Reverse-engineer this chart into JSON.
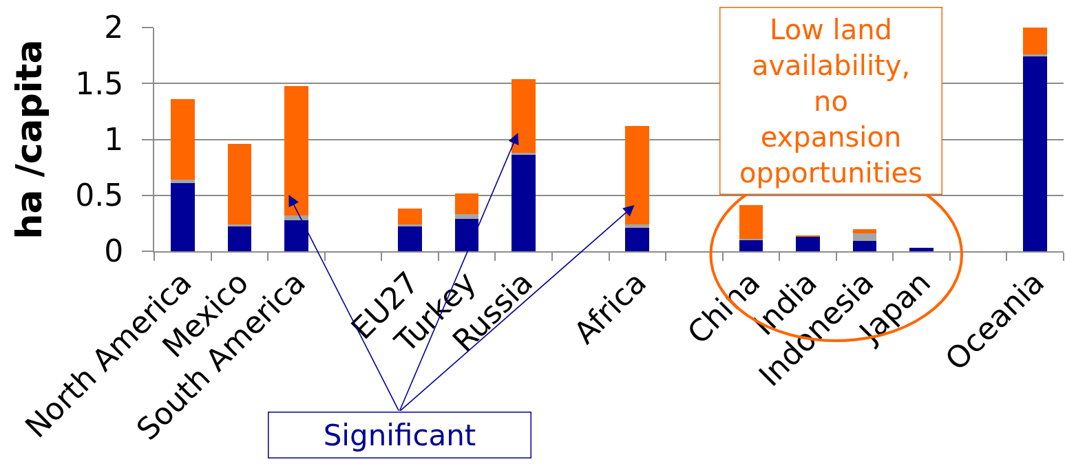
{
  "chart_data": {
    "type": "bar",
    "stacked": true,
    "ylabel": "ha /capita",
    "categories": [
      "North America",
      "Mexico",
      "South America",
      null,
      "EU27",
      "Turkey",
      "Russia",
      null,
      "Africa",
      null,
      "China",
      "India",
      "Indonesia",
      "Japan",
      null,
      "Oceania"
    ],
    "series": [
      {
        "color": "#000099",
        "values": [
          0.61,
          0.22,
          0.28,
          null,
          0.22,
          0.29,
          0.86,
          null,
          0.21,
          null,
          0.1,
          0.13,
          0.09,
          0.03,
          null,
          1.74
        ]
      },
      {
        "color": "#a6a6a6",
        "values": [
          0.03,
          0.02,
          0.04,
          null,
          0.02,
          0.04,
          0.02,
          null,
          0.03,
          null,
          0.01,
          null,
          0.07,
          null,
          null,
          0.02
        ]
      },
      {
        "color": "#ff6600",
        "values": [
          0.72,
          0.72,
          1.16,
          null,
          0.14,
          0.19,
          0.66,
          null,
          0.88,
          null,
          0.3,
          0.01,
          0.04,
          null,
          null,
          0.24
        ]
      }
    ],
    "ylim": [
      0,
      2
    ],
    "yticks": [
      0,
      0.5,
      1,
      1.5,
      2
    ],
    "grid": "y",
    "annotations": [
      "Significant",
      "Low land availability, no expansion opportunities"
    ]
  }
}
